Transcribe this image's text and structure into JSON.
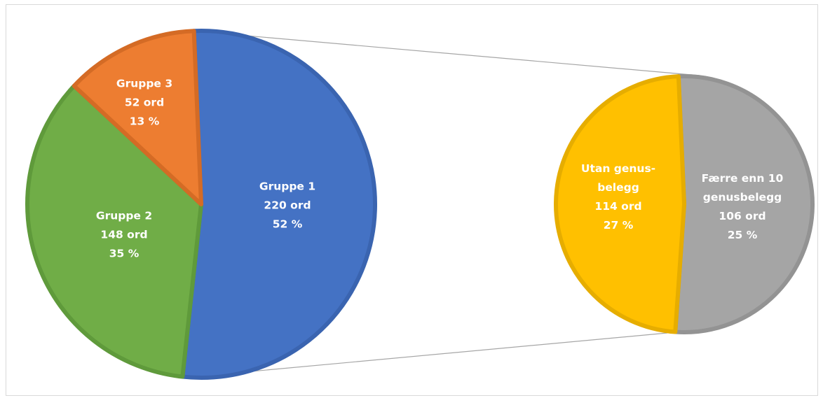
{
  "chart_data": {
    "type": "bar-of-pie",
    "main_pie": {
      "slices": [
        {
          "label_lines": [
            "Gruppe 1",
            "220 ord",
            "52 %"
          ],
          "value": 220,
          "percent": 52,
          "color": "#4472c4",
          "stroke": "#3a64b0"
        },
        {
          "label_lines": [
            "Gruppe 2",
            "148 ord",
            "35 %"
          ],
          "value": 148,
          "percent": 35,
          "color": "#70ad47",
          "stroke": "#5f9a3b"
        },
        {
          "label_lines": [
            "Gruppe 3",
            "52 ord",
            "13 %"
          ],
          "value": 52,
          "percent": 13,
          "color": "#ed7d31",
          "stroke": "#d46b25"
        }
      ]
    },
    "secondary_pie": {
      "exploded_from": "Gruppe 1",
      "slices": [
        {
          "label_lines": [
            "Utan genus-",
            "belegg",
            "114 ord",
            "27 %"
          ],
          "value": 114,
          "percent": 27,
          "color": "#a5a5a5",
          "stroke": "#939393"
        },
        {
          "label_lines": [
            "Færre enn 10",
            "genusbelegg",
            "106 ord",
            "25 %"
          ],
          "value": 106,
          "percent": 25,
          "color": "#ffc000",
          "stroke": "#e6ad00"
        }
      ]
    },
    "connector_color": "#a6a6a6"
  }
}
